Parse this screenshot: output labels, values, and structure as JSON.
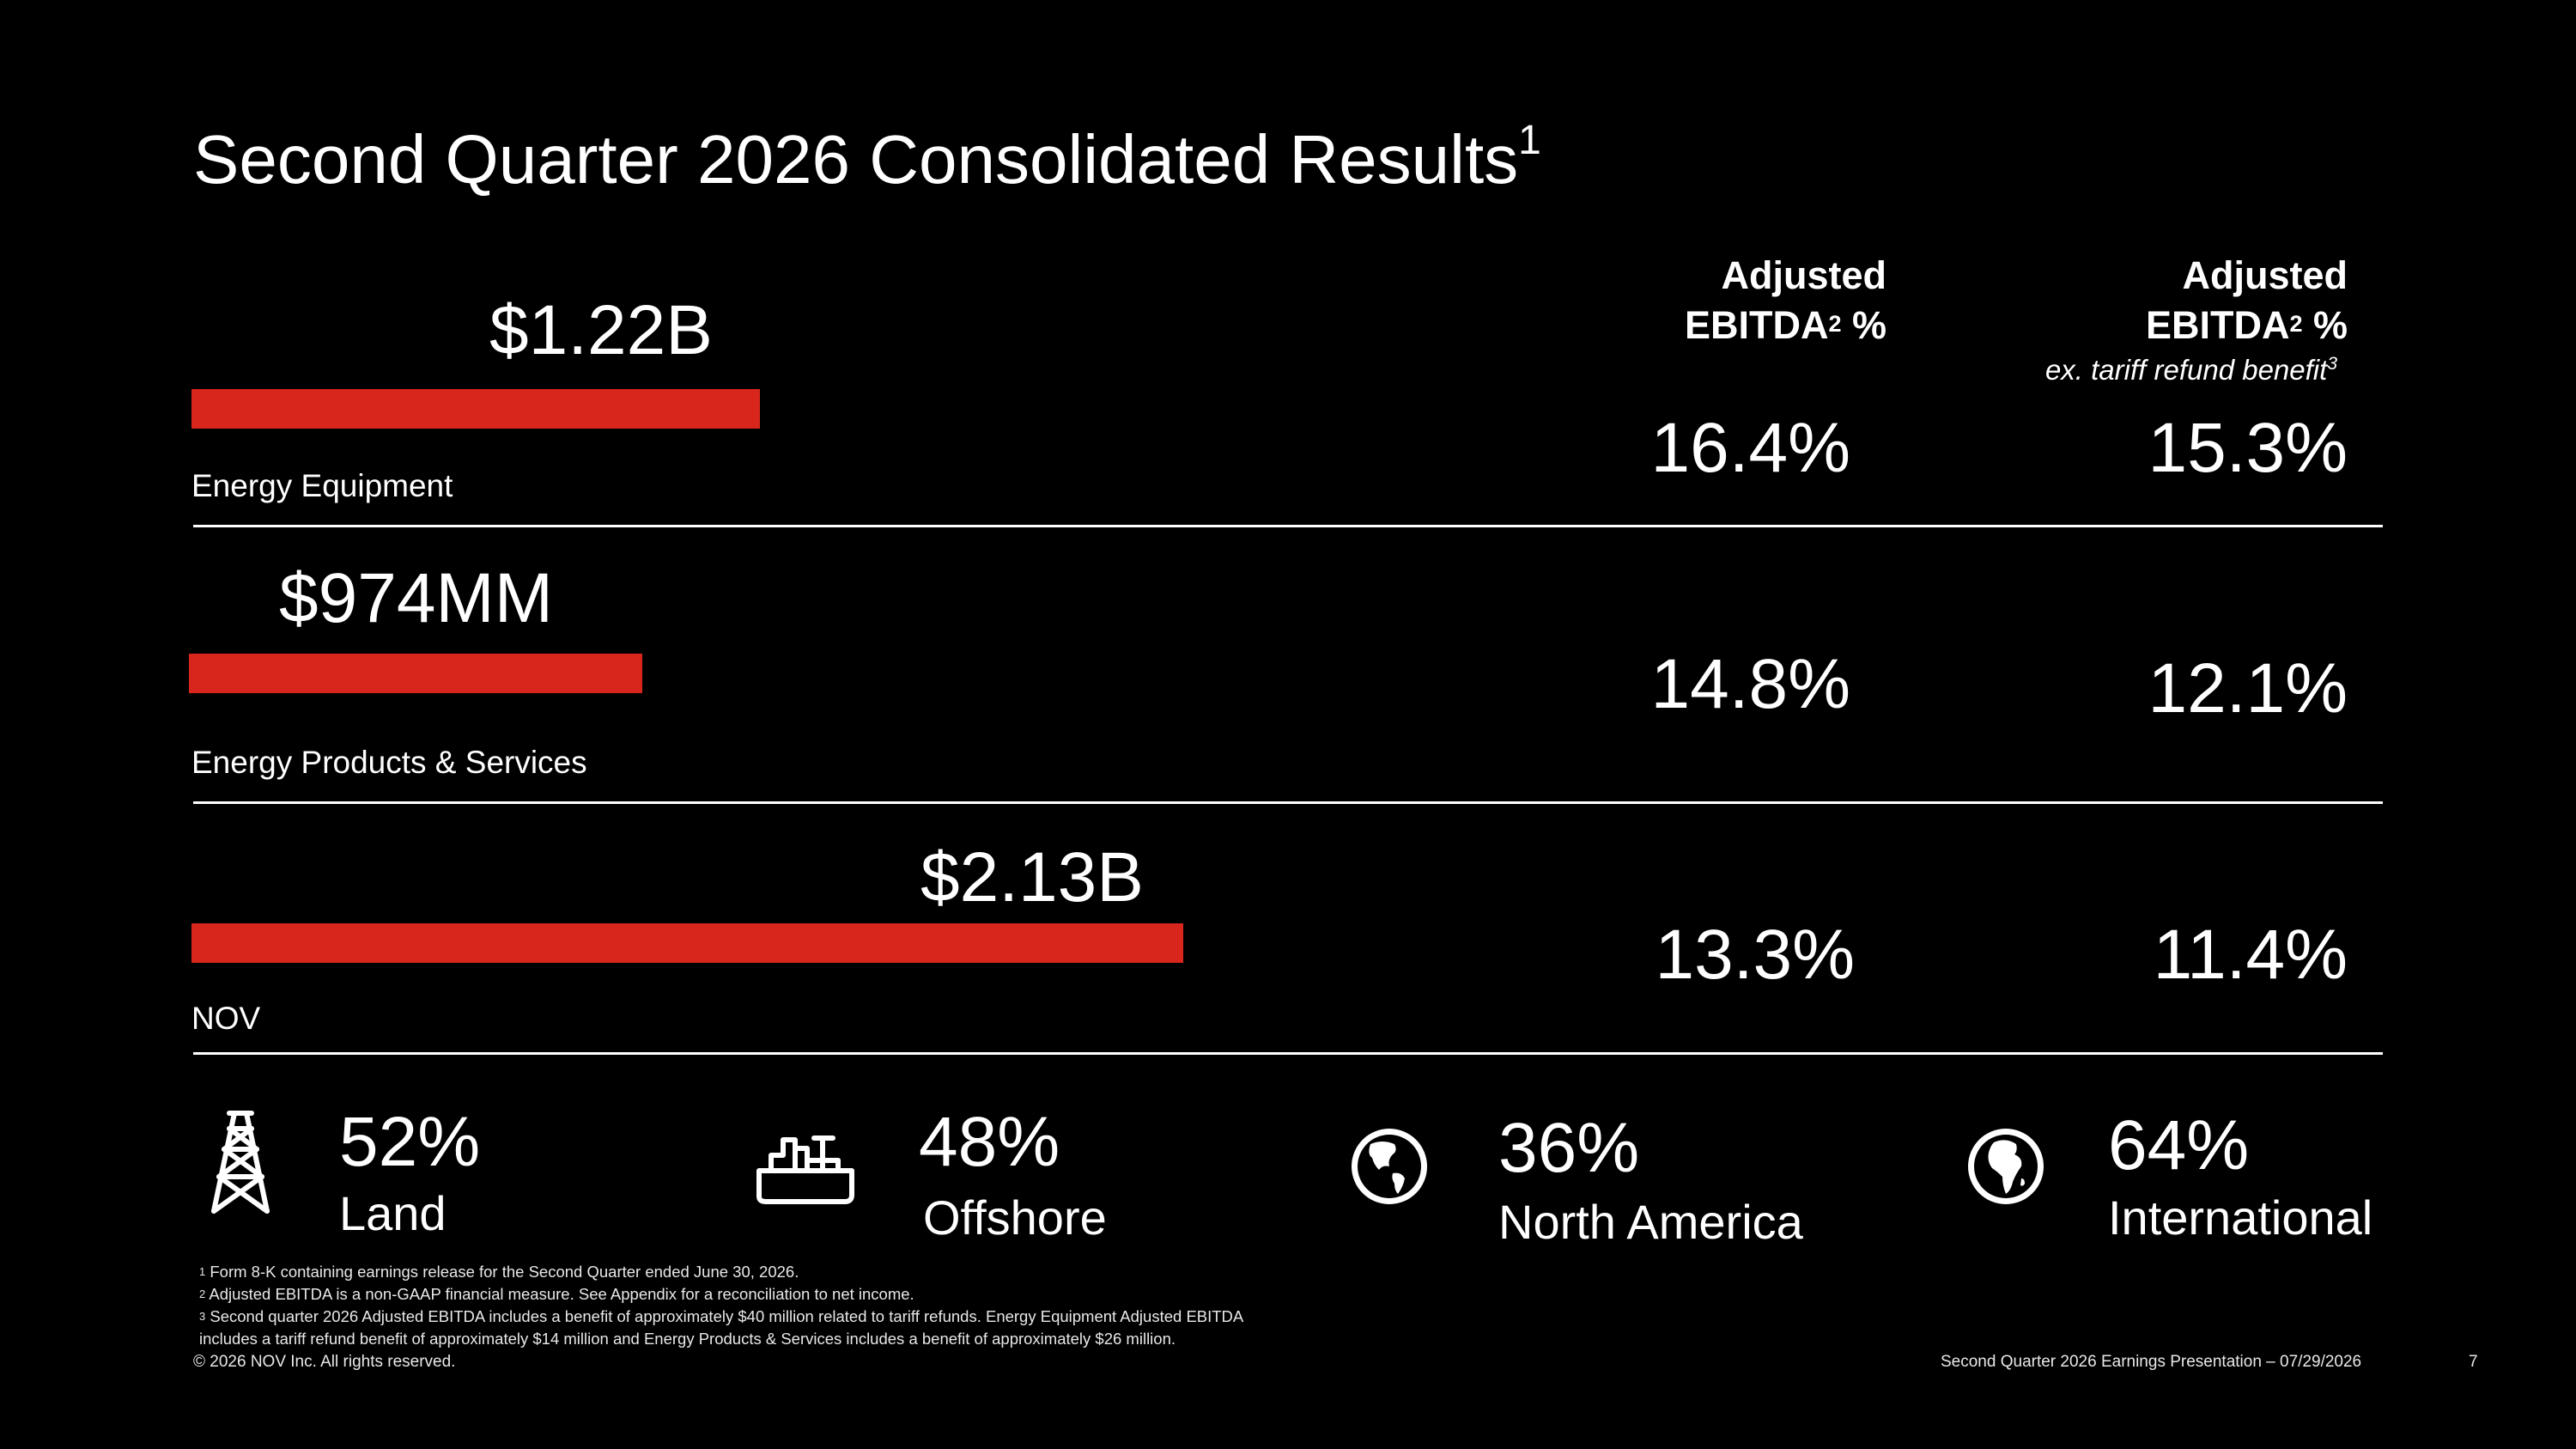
{
  "title": {
    "text": "Second Quarter 2026 Consolidated Results",
    "sup": "1"
  },
  "columns": [
    {
      "line1": "Adjusted",
      "line2": "EBITDA",
      "sup": "2",
      "suffix": " %",
      "note": ""
    },
    {
      "line1": "Adjusted",
      "line2": "EBITDA",
      "sup": "2",
      "suffix": " %",
      "note": "ex. tariff refund benefit",
      "note_sup": "3"
    }
  ],
  "accent_color": "#d9261c",
  "segments": [
    {
      "amount": "$1.22B",
      "revenue_millions": 1220,
      "label": "Energy Equipment",
      "adj_ebitda": "16.4%",
      "adj_ebitda_ex_tariff": "15.3%"
    },
    {
      "amount": "$974MM",
      "revenue_millions": 974,
      "label": "Energy Products & Services",
      "adj_ebitda": "14.8%",
      "adj_ebitda_ex_tariff": "12.1%"
    },
    {
      "amount": "$2.13B",
      "revenue_millions": 2130,
      "label": "NOV",
      "adj_ebitda": "13.3%",
      "adj_ebitda_ex_tariff": "11.4%"
    }
  ],
  "stats": [
    {
      "value": "52%",
      "label": "Land",
      "icon": "oil-rig-icon"
    },
    {
      "value": "48%",
      "label": "Offshore",
      "icon": "offshore-vessel-icon"
    },
    {
      "value": "36%",
      "label": "North America",
      "icon": "globe-americas-icon"
    },
    {
      "value": "64%",
      "label": "International",
      "icon": "globe-africa-icon"
    }
  ],
  "footnotes": [
    {
      "sup": "1",
      "text": " Form 8-K containing earnings release for the Second Quarter ended June 30, 2026."
    },
    {
      "sup": "2",
      "text": " Adjusted EBITDA is a non-GAAP financial measure. See Appendix for a reconciliation to net income."
    },
    {
      "sup": "3",
      "text": " Second quarter 2026 Adjusted EBITDA includes a benefit of approximately $40 million related to tariff refunds. Energy Equipment Adjusted EBITDA"
    },
    {
      "sup": "",
      "text": "includes a tariff refund benefit of approximately $14 million and Energy Products & Services includes a benefit of approximately $26 million."
    }
  ],
  "footer": {
    "copyright": "© 2026 NOV Inc. All rights reserved.",
    "presentation": "Second Quarter 2026 Earnings Presentation – 07/29/2026",
    "page": "7"
  }
}
